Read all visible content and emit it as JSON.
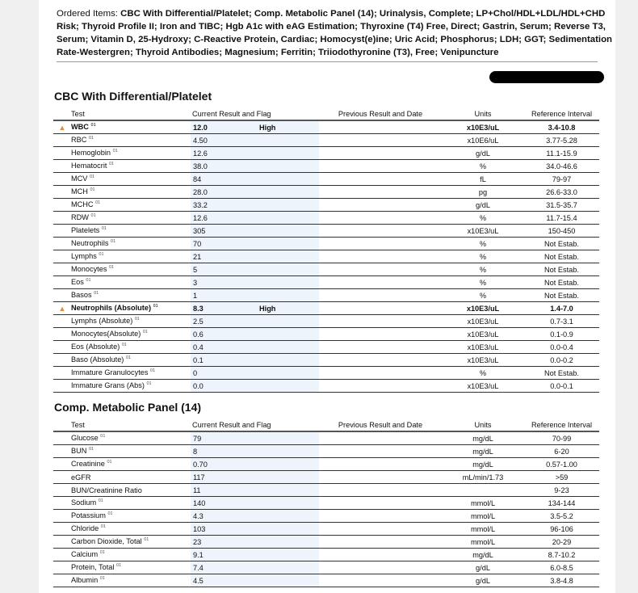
{
  "ordered": {
    "label": "Ordered Items:",
    "items": "CBC With Differential/Platelet; Comp. Metabolic Panel (14); Urinalysis, Complete; LP+Chol/HDL+LDL/HDL+CHD Risk; Thyroid Profile II; Iron and TIBC; Hgb A1c with eAG Estimation; Thyroxine (T4) Free, Direct; Gastrin, Serum; Reverse T3, Serum; Vitamin D, 25-Hydroxy; C-Reactive Protein, Cardiac; Homocyst(e)ine; Uric Acid; Phosphorus; LDH; GGT; Sedimentation Rate-Westergren; Thyroid Antibodies; Magnesium; Ferritin; Triiodothyronine (T3), Free; Venipuncture"
  },
  "headers": {
    "test": "Test",
    "current": "Current Result and Flag",
    "previous": "Previous Result and Date",
    "units": "Units",
    "ref": "Reference Interval"
  },
  "sup": "01",
  "flag_color": "#e08a3c",
  "sections": [
    {
      "title": "CBC With Differential/Platelet",
      "rows": [
        {
          "test": "WBC",
          "sup": true,
          "result": "12.0",
          "flag": "High",
          "units": "x10E3/uL",
          "ref": "3.4-10.8"
        },
        {
          "test": "RBC",
          "sup": true,
          "result": "4.50",
          "flag": "",
          "units": "x10E6/uL",
          "ref": "3.77-5.28"
        },
        {
          "test": "Hemoglobin",
          "sup": true,
          "result": "12.6",
          "flag": "",
          "units": "g/dL",
          "ref": "11.1-15.9"
        },
        {
          "test": "Hematocrit",
          "sup": true,
          "result": "38.0",
          "flag": "",
          "units": "%",
          "ref": "34.0-46.6"
        },
        {
          "test": "MCV",
          "sup": true,
          "result": "84",
          "flag": "",
          "units": "fL",
          "ref": "79-97"
        },
        {
          "test": "MCH",
          "sup": true,
          "result": "28.0",
          "flag": "",
          "units": "pg",
          "ref": "26.6-33.0"
        },
        {
          "test": "MCHC",
          "sup": true,
          "result": "33.2",
          "flag": "",
          "units": "g/dL",
          "ref": "31.5-35.7"
        },
        {
          "test": "RDW",
          "sup": true,
          "result": "12.6",
          "flag": "",
          "units": "%",
          "ref": "11.7-15.4"
        },
        {
          "test": "Platelets",
          "sup": true,
          "result": "305",
          "flag": "",
          "units": "x10E3/uL",
          "ref": "150-450"
        },
        {
          "test": "Neutrophils",
          "sup": true,
          "result": "70",
          "flag": "",
          "units": "%",
          "ref": "Not Estab."
        },
        {
          "test": "Lymphs",
          "sup": true,
          "result": "21",
          "flag": "",
          "units": "%",
          "ref": "Not Estab."
        },
        {
          "test": "Monocytes",
          "sup": true,
          "result": "5",
          "flag": "",
          "units": "%",
          "ref": "Not Estab."
        },
        {
          "test": "Eos",
          "sup": true,
          "result": "3",
          "flag": "",
          "units": "%",
          "ref": "Not Estab."
        },
        {
          "test": "Basos",
          "sup": true,
          "result": "1",
          "flag": "",
          "units": "%",
          "ref": "Not Estab."
        },
        {
          "test": "Neutrophils (Absolute)",
          "sup": true,
          "result": "8.3",
          "flag": "High",
          "units": "x10E3/uL",
          "ref": "1.4-7.0"
        },
        {
          "test": "Lymphs (Absolute)",
          "sup": true,
          "result": "2.5",
          "flag": "",
          "units": "x10E3/uL",
          "ref": "0.7-3.1"
        },
        {
          "test": "Monocytes(Absolute)",
          "sup": true,
          "result": "0.6",
          "flag": "",
          "units": "x10E3/uL",
          "ref": "0.1-0.9"
        },
        {
          "test": "Eos (Absolute)",
          "sup": true,
          "result": "0.4",
          "flag": "",
          "units": "x10E3/uL",
          "ref": "0.0-0.4"
        },
        {
          "test": "Baso (Absolute)",
          "sup": true,
          "result": "0.1",
          "flag": "",
          "units": "x10E3/uL",
          "ref": "0.0-0.2"
        },
        {
          "test": "Immature Granulocytes",
          "sup": true,
          "result": "0",
          "flag": "",
          "units": "%",
          "ref": "Not Estab."
        },
        {
          "test": "Immature Grans (Abs)",
          "sup": true,
          "result": "0.0",
          "flag": "",
          "units": "x10E3/uL",
          "ref": "0.0-0.1"
        }
      ]
    },
    {
      "title": "Comp. Metabolic Panel (14)",
      "rows": [
        {
          "test": "Glucose",
          "sup": true,
          "result": "79",
          "flag": "",
          "units": "mg/dL",
          "ref": "70-99"
        },
        {
          "test": "BUN",
          "sup": true,
          "result": "8",
          "flag": "",
          "units": "mg/dL",
          "ref": "6-20"
        },
        {
          "test": "Creatinine",
          "sup": true,
          "result": "0.70",
          "flag": "",
          "units": "mg/dL",
          "ref": "0.57-1.00"
        },
        {
          "test": "eGFR",
          "sup": false,
          "result": "117",
          "flag": "",
          "units": "mL/min/1.73",
          "ref": ">59"
        },
        {
          "test": "BUN/Creatinine Ratio",
          "sup": false,
          "result": "11",
          "flag": "",
          "units": "",
          "ref": "9-23"
        },
        {
          "test": "Sodium",
          "sup": true,
          "result": "140",
          "flag": "",
          "units": "mmol/L",
          "ref": "134-144"
        },
        {
          "test": "Potassium",
          "sup": true,
          "result": "4.3",
          "flag": "",
          "units": "mmol/L",
          "ref": "3.5-5.2"
        },
        {
          "test": "Chloride",
          "sup": true,
          "result": "103",
          "flag": "",
          "units": "mmol/L",
          "ref": "96-106"
        },
        {
          "test": "Carbon Dioxide, Total",
          "sup": true,
          "result": "23",
          "flag": "",
          "units": "mmol/L",
          "ref": "20-29"
        },
        {
          "test": "Calcium",
          "sup": true,
          "result": "9.1",
          "flag": "",
          "units": "mg/dL",
          "ref": "8.7-10.2"
        },
        {
          "test": "Protein, Total",
          "sup": true,
          "result": "7.4",
          "flag": "",
          "units": "g/dL",
          "ref": "6.0-8.5"
        },
        {
          "test": "Albumin",
          "sup": true,
          "result": "4.5",
          "flag": "",
          "units": "g/dL",
          "ref": "3.8-4.8"
        }
      ]
    }
  ]
}
